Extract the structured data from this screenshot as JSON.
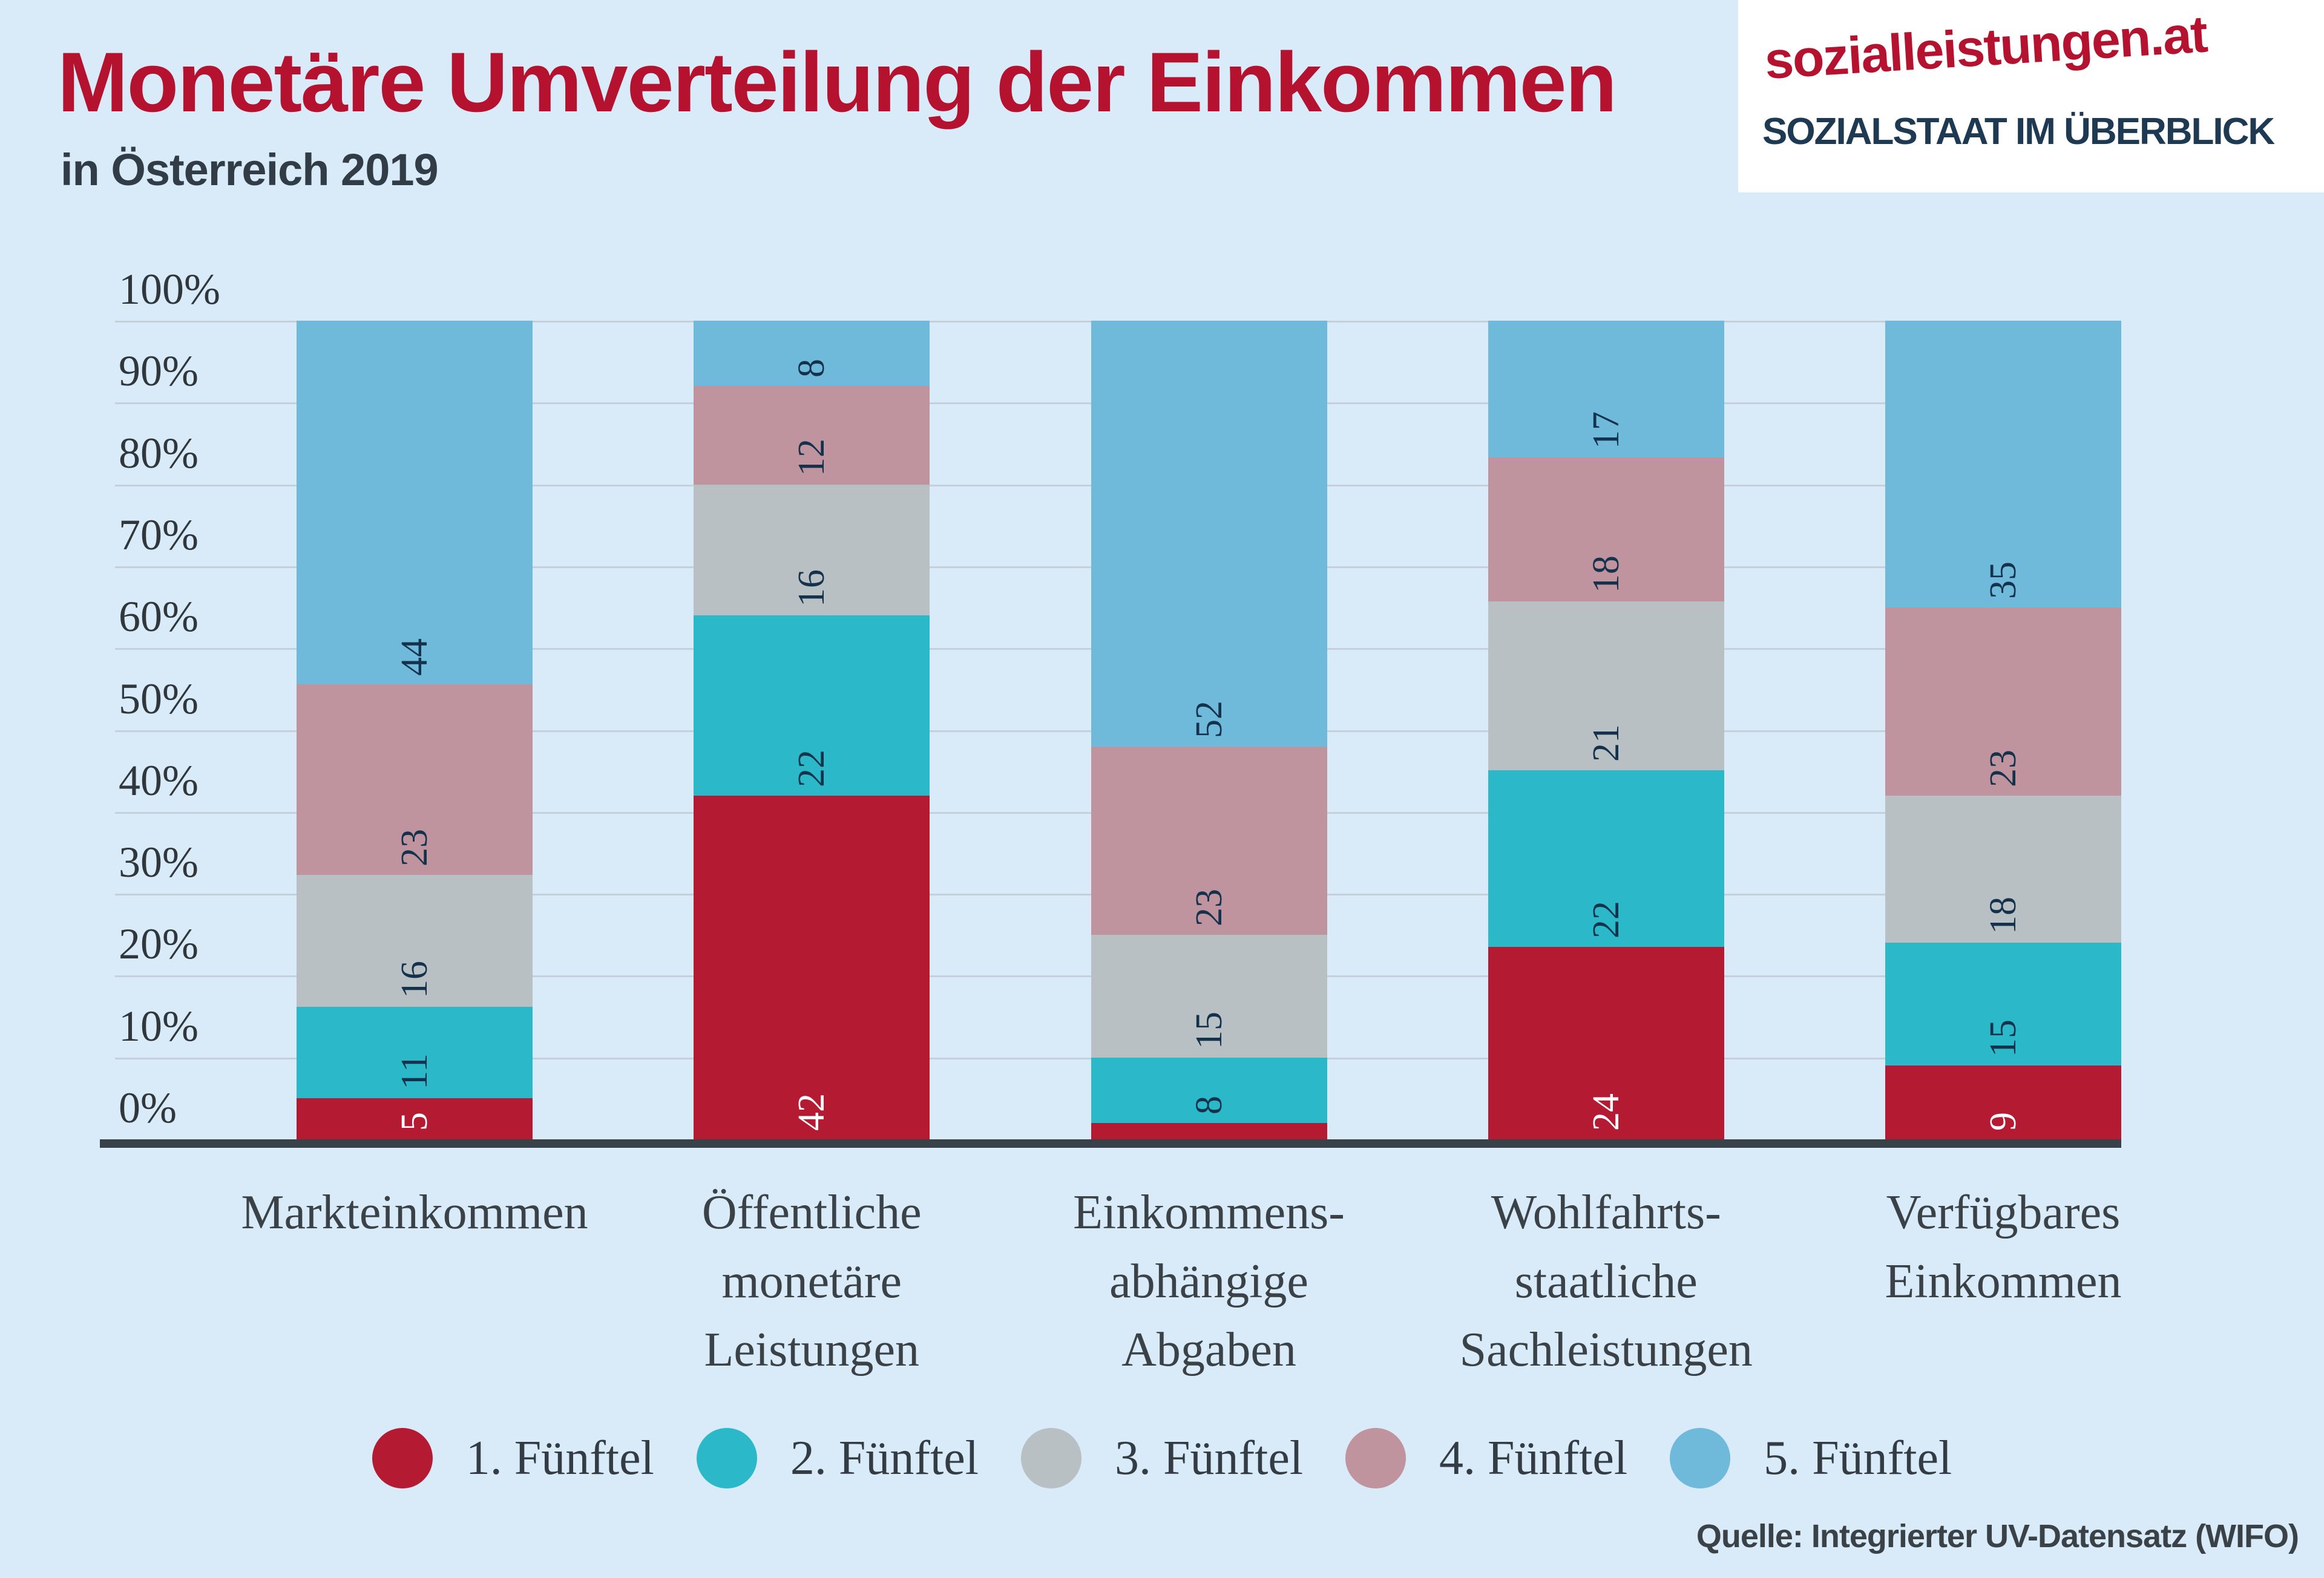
{
  "header": {
    "title": "Monetäre Umverteilung der Einkommen",
    "subtitle": "in Österreich 2019"
  },
  "logo": {
    "line1": "sozialleistungen.at",
    "line2": "SOZIALSTAAT IM ÜBERBLICK"
  },
  "colors": {
    "background": "#d9ebf8",
    "gridline": "#c6d0da",
    "axis": "#3a4249",
    "title_red": "#b5122f",
    "bar_label_navy": "#14324b",
    "bar_label_white": "#ffffff"
  },
  "chart_data": {
    "type": "bar",
    "stacked": true,
    "value_unit": "%",
    "ylim": [
      0,
      100
    ],
    "grid": true,
    "legend_position": "bottom",
    "yticks": [
      "0%",
      "10%",
      "20%",
      "30%",
      "40%",
      "50%",
      "60%",
      "70%",
      "80%",
      "90%",
      "100%"
    ],
    "categories": [
      "Markteinkommen",
      "Öffentliche monetäre Leistungen",
      "Einkommensabhängige Abgaben",
      "Wohlfahrtsstaatliche Sachleistungen",
      "Verfügbares Einkommen"
    ],
    "category_lines": [
      [
        "Markteinkommen"
      ],
      [
        "Öffentliche",
        "monetäre",
        "Leistungen"
      ],
      [
        "Einkommens-",
        "abhängige",
        "Abgaben"
      ],
      [
        "Wohlfahrts-",
        "staatliche",
        "Sachleistungen"
      ],
      [
        "Verfügbares",
        "Einkommen"
      ]
    ],
    "series": [
      {
        "name": "1. Fünftel",
        "color": "#b51a33",
        "label_color": "#ffffff",
        "values": [
          5,
          42,
          2,
          24,
          9
        ],
        "labels": [
          "5",
          "42",
          "",
          "24",
          "9"
        ]
      },
      {
        "name": "2. Fünftel",
        "color": "#2bb9c9",
        "label_color": "#14324b",
        "values": [
          11,
          22,
          8,
          22,
          15
        ],
        "labels": [
          "11",
          "22",
          "8",
          "22",
          "15"
        ]
      },
      {
        "name": "3. Fünftel",
        "color": "#b9c0c4",
        "label_color": "#14324b",
        "values": [
          16,
          16,
          15,
          21,
          18
        ],
        "labels": [
          "16",
          "16",
          "15",
          "21",
          "18"
        ]
      },
      {
        "name": "4. Fünftel",
        "color": "#c0949e",
        "label_color": "#14324b",
        "values": [
          23,
          12,
          23,
          18,
          23
        ],
        "labels": [
          "23",
          "12",
          "23",
          "18",
          "23"
        ]
      },
      {
        "name": "5. Fünftel",
        "color": "#6fb9da",
        "label_color": "#14324b",
        "values": [
          44,
          8,
          52,
          17,
          35
        ],
        "labels": [
          "44",
          "8",
          "52",
          "17",
          "35"
        ]
      }
    ]
  },
  "source": "Quelle: Integrierter UV-Datensatz (WIFO)"
}
